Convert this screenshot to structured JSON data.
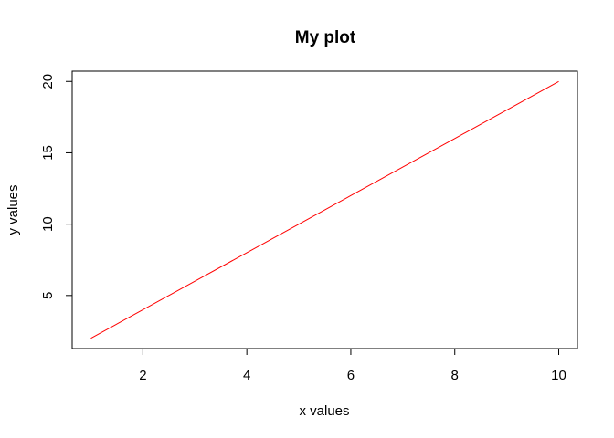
{
  "chart_data": {
    "type": "line",
    "title": "My plot",
    "xlabel": "x values",
    "ylabel": "y values",
    "x": [
      1,
      2,
      3,
      4,
      5,
      6,
      7,
      8,
      9,
      10
    ],
    "series": [
      {
        "values": [
          2,
          4,
          6,
          8,
          10,
          12,
          14,
          16,
          18,
          20
        ],
        "color": "#ff0000"
      }
    ],
    "xlim": [
      0.64,
      10.36
    ],
    "ylim": [
      1.28,
      20.72
    ],
    "x_ticks": [
      2,
      4,
      6,
      8,
      10
    ],
    "y_ticks": [
      5,
      10,
      15,
      20
    ],
    "grid": false,
    "legend": "none"
  }
}
